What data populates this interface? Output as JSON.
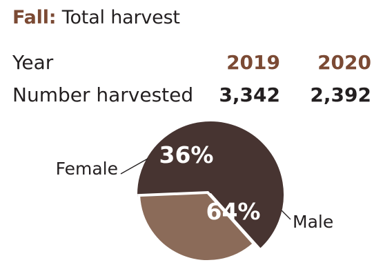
{
  "header": {
    "season": "Fall:",
    "title": "Total harvest",
    "accent_color": "#7b4a34"
  },
  "table": {
    "year_label": "Year",
    "count_label": "Number harvested",
    "years": [
      "2019",
      "2020"
    ],
    "counts": [
      "3,342",
      "2,392"
    ]
  },
  "chart_data": {
    "type": "pie",
    "slices": [
      {
        "label": "Female",
        "value": 36,
        "display": "36%",
        "color": "#8b6b59"
      },
      {
        "label": "Male",
        "value": 64,
        "display": "64%",
        "color": "#473431"
      }
    ]
  }
}
